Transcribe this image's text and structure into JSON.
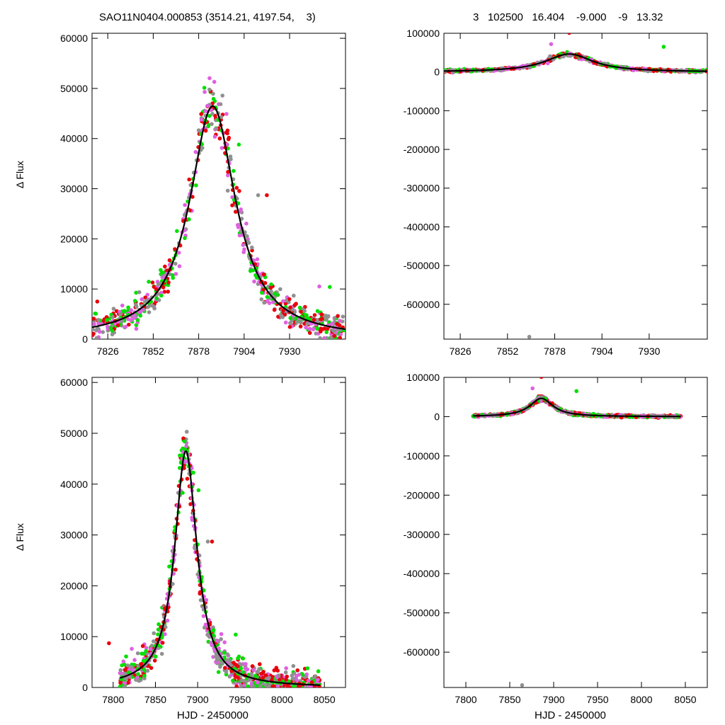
{
  "header": {
    "title_left": "SAO11N0404.000853 (3514.21, 4197.54,    3)",
    "title_right": "3   102500   16.404    -9.000    -9   13.32"
  },
  "axes_text": {
    "ylabel": "Δ Flux",
    "xlabel": "HJD - 2450000"
  },
  "chart_data": [
    {
      "type": "scatter",
      "panel": "top-left",
      "xlim": [
        7817,
        7962
      ],
      "ylim": [
        0,
        61000
      ],
      "xticks": [
        7826,
        7852,
        7878,
        7904,
        7930
      ],
      "yticks": [
        0,
        10000,
        20000,
        30000,
        40000,
        50000,
        60000
      ],
      "model": {
        "t0": 7886,
        "peak": 46500,
        "tau": 16,
        "base": 0
      },
      "series_colors": [
        "#e8000b",
        "#e060e0",
        "#00e000",
        "#909090"
      ],
      "outliers": [
        [
          7820,
          7500
        ],
        [
          7865,
          13000
        ],
        [
          7901,
          38800
        ],
        [
          7912,
          28700
        ],
        [
          7917,
          28700
        ],
        [
          7947,
          10500
        ],
        [
          7953,
          10400
        ]
      ]
    },
    {
      "type": "scatter",
      "panel": "top-right",
      "xlim": [
        7817,
        7962
      ],
      "ylim": [
        -690000,
        100000
      ],
      "xticks": [
        7826,
        7852,
        7878,
        7904,
        7930
      ],
      "yticks": [
        100000,
        0,
        -100000,
        -200000,
        -300000,
        -400000,
        -500000,
        -600000
      ],
      "model": {
        "t0": 7886,
        "peak": 46500,
        "tau": 16,
        "base": 0
      },
      "series_colors": [
        "#e8000b",
        "#e060e0",
        "#00e000",
        "#909090"
      ],
      "outliers": [
        [
          7886,
          101000
        ],
        [
          7876,
          72000
        ],
        [
          7938,
          65000
        ],
        [
          7864,
          -684000
        ]
      ]
    },
    {
      "type": "scatter",
      "panel": "bottom-left",
      "xlim": [
        7775,
        8075
      ],
      "ylim": [
        0,
        61000
      ],
      "xticks": [
        7800,
        7850,
        7900,
        7950,
        8000,
        8050
      ],
      "yticks": [
        0,
        10000,
        20000,
        30000,
        40000,
        50000,
        60000
      ],
      "model": {
        "t0": 7886,
        "peak": 46500,
        "tau": 16,
        "base": 0
      },
      "series_colors": [
        "#e8000b",
        "#e060e0",
        "#00e000",
        "#909090"
      ],
      "outliers": [
        [
          7795,
          8700
        ],
        [
          7822,
          7600
        ],
        [
          7901,
          38800
        ],
        [
          7912,
          28700
        ],
        [
          7917,
          28700
        ],
        [
          7928,
          10500
        ],
        [
          7945,
          10400
        ]
      ]
    },
    {
      "type": "scatter",
      "panel": "bottom-right",
      "xlim": [
        7775,
        8075
      ],
      "ylim": [
        -690000,
        100000
      ],
      "xticks": [
        7800,
        7850,
        7900,
        7950,
        8000,
        8050
      ],
      "yticks": [
        100000,
        0,
        -100000,
        -200000,
        -300000,
        -400000,
        -500000,
        -600000
      ],
      "model": {
        "t0": 7886,
        "peak": 46500,
        "tau": 16,
        "base": 0
      },
      "series_colors": [
        "#e8000b",
        "#e060e0",
        "#00e000",
        "#909090"
      ],
      "outliers": [
        [
          7886,
          101000
        ],
        [
          7876,
          72000
        ],
        [
          7926,
          65000
        ],
        [
          7864,
          -684000
        ]
      ]
    }
  ]
}
